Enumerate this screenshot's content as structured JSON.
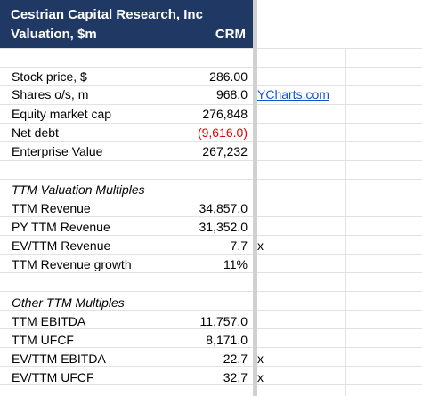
{
  "header": {
    "title": "Cestrian Capital Research, Inc",
    "subtitle": "Valuation, $m",
    "ticker": "CRM"
  },
  "rows": {
    "stock_price": {
      "label": "Stock price, $",
      "value": "286.00"
    },
    "shares": {
      "label": "Shares o/s, m",
      "value": "968.0",
      "link": "YCharts.com"
    },
    "equity_cap": {
      "label": "Equity market cap",
      "value": "276,848"
    },
    "net_debt": {
      "label": "Net debt",
      "value": "(9,616.0)",
      "value_color": "#e00000"
    },
    "ev": {
      "label": "Enterprise Value",
      "value": "267,232"
    },
    "ttm_section": {
      "label": "TTM Valuation Multiples"
    },
    "ttm_revenue": {
      "label": "TTM Revenue",
      "value": "34,857.0"
    },
    "py_revenue": {
      "label": "PY TTM Revenue",
      "value": "31,352.0"
    },
    "ev_revenue": {
      "label": "EV/TTM Revenue",
      "value": "7.7",
      "suffix": "x"
    },
    "revenue_growth": {
      "label": "TTM Revenue growth",
      "value": "11%"
    },
    "other_section": {
      "label": "Other TTM Multiples"
    },
    "ttm_ebitda": {
      "label": "TTM EBITDA",
      "value": "11,757.0"
    },
    "ttm_ufcf": {
      "label": "TTM UFCF",
      "value": "8,171.0"
    },
    "ev_ebitda": {
      "label": "EV/TTM EBITDA",
      "value": "22.7",
      "suffix": "x"
    },
    "ev_ufcf": {
      "label": "EV/TTM UFCF",
      "value": "32.7",
      "suffix": "x"
    }
  },
  "colors": {
    "header_bg": "#1f3864",
    "header_text": "#ffffff",
    "negative": "#e00000",
    "link": "#1155cc"
  }
}
